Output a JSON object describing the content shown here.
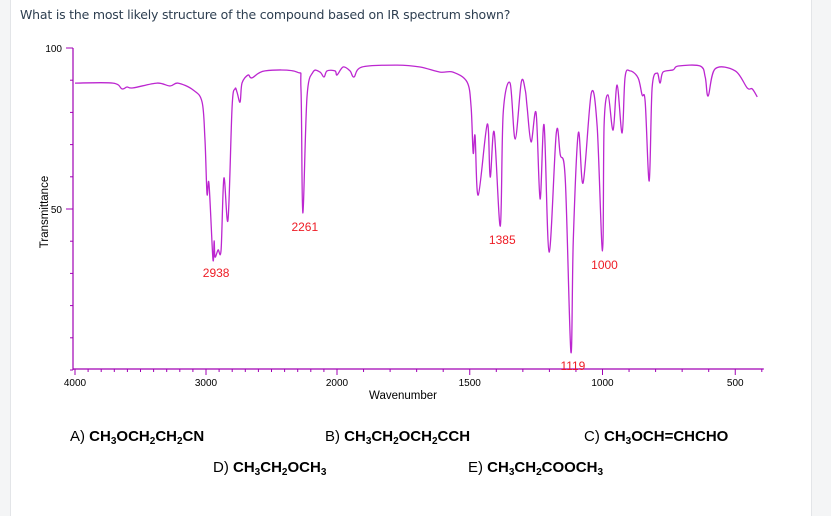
{
  "question": "What is the most likely structure of the compound based on IR spectrum shown?",
  "answers": [
    {
      "letter": "A)",
      "formula": "CH3OCH2CH2CN"
    },
    {
      "letter": "B)",
      "formula": "CH3CH2OCH2CCH"
    },
    {
      "letter": "C)",
      "formula": "CH3OCH=CHCHO"
    },
    {
      "letter": "D)",
      "formula": "CH3CH2OCH3"
    },
    {
      "letter": "E)",
      "formula": "CH3CH2COOCH3"
    }
  ],
  "chart_data": {
    "type": "line",
    "title": "",
    "xlabel": "Wavenumber",
    "ylabel": "Transmittance",
    "xlim": [
      4000,
      400
    ],
    "ylim": [
      0,
      100
    ],
    "x_scale_note_visible": "4000-2000 compressed, 2000-400 expanded",
    "x_ticks": [
      "4000",
      "3000",
      "2000",
      "1500",
      "1000",
      "500"
    ],
    "y_ticks": [
      "100",
      "50"
    ],
    "grid": false,
    "line_color": "#b000c8",
    "axis_color": "#a000b4",
    "label_color": "#ee1c25",
    "peak_labels": [
      {
        "x": 2938,
        "y": 34.5,
        "text": "2938"
      },
      {
        "x": 2261,
        "y": 48.8,
        "text": "2261"
      },
      {
        "x": 1385,
        "y": 44.7,
        "text": "1385"
      },
      {
        "x": 1119,
        "y": 5.6,
        "text": "1119"
      },
      {
        "x": 1000,
        "y": 37.0,
        "text": "1000"
      }
    ],
    "series": [
      {
        "x": [
          4000,
          3710,
          3641,
          3603,
          3557,
          3374,
          3275,
          3214,
          3099,
          3030,
          3008,
          2992,
          2977,
          2947,
          2938,
          2931,
          2908,
          2885,
          2863,
          2832,
          2801,
          2779,
          2763,
          2740,
          2725,
          2679,
          2649,
          2550,
          2305,
          2275,
          2261,
          2229,
          2183,
          2130,
          2099,
          2076,
          2015,
          2000,
          1977,
          1951,
          1936,
          1906,
          1774,
          1687,
          1612,
          1563,
          1510,
          1495,
          1487,
          1480,
          1468,
          1434,
          1423,
          1408,
          1385,
          1374,
          1348,
          1329,
          1306,
          1291,
          1284,
          1269,
          1250,
          1235,
          1220,
          1201,
          1174,
          1159,
          1140,
          1119,
          1110,
          1091,
          1073,
          1042,
          1020,
          1000,
          994,
          979,
          960,
          945,
          926,
          915,
          896,
          866,
          851,
          839,
          824,
          813,
          794,
          783,
          772,
          734,
          715,
          632,
          613,
          602,
          576,
          500,
          455,
          436,
          417
        ],
        "y": [
          89.1,
          89.1,
          87.3,
          87.9,
          87.6,
          89.1,
          88.2,
          89.1,
          87.0,
          83.2,
          71.4,
          54.7,
          57.8,
          34.5,
          40.1,
          35.1,
          37.3,
          37.3,
          59.6,
          46.6,
          81.7,
          87.3,
          86.3,
          83.2,
          89.1,
          91.6,
          90.7,
          92.9,
          92.5,
          87.0,
          48.8,
          84.8,
          92.5,
          92.5,
          91.0,
          92.9,
          92.9,
          91.6,
          94.1,
          92.9,
          91.0,
          94.1,
          94.7,
          94.1,
          92.5,
          92.5,
          89.4,
          81.7,
          67.4,
          72.7,
          54.3,
          76.4,
          59.9,
          73.9,
          44.7,
          79.8,
          89.1,
          71.7,
          89.4,
          87.0,
          81.7,
          70.8,
          79.8,
          53.1,
          76.1,
          36.6,
          73.6,
          66.8,
          59.0,
          5.6,
          40.4,
          73.6,
          58.1,
          86.0,
          75.5,
          37.0,
          76.1,
          85.4,
          74.5,
          88.5,
          73.6,
          91.0,
          92.9,
          90.7,
          85.4,
          83.2,
          58.7,
          87.6,
          92.2,
          89.1,
          92.5,
          93.2,
          94.4,
          94.4,
          91.0,
          85.1,
          93.5,
          92.9,
          87.6,
          87.3,
          84.8
        ]
      }
    ]
  }
}
